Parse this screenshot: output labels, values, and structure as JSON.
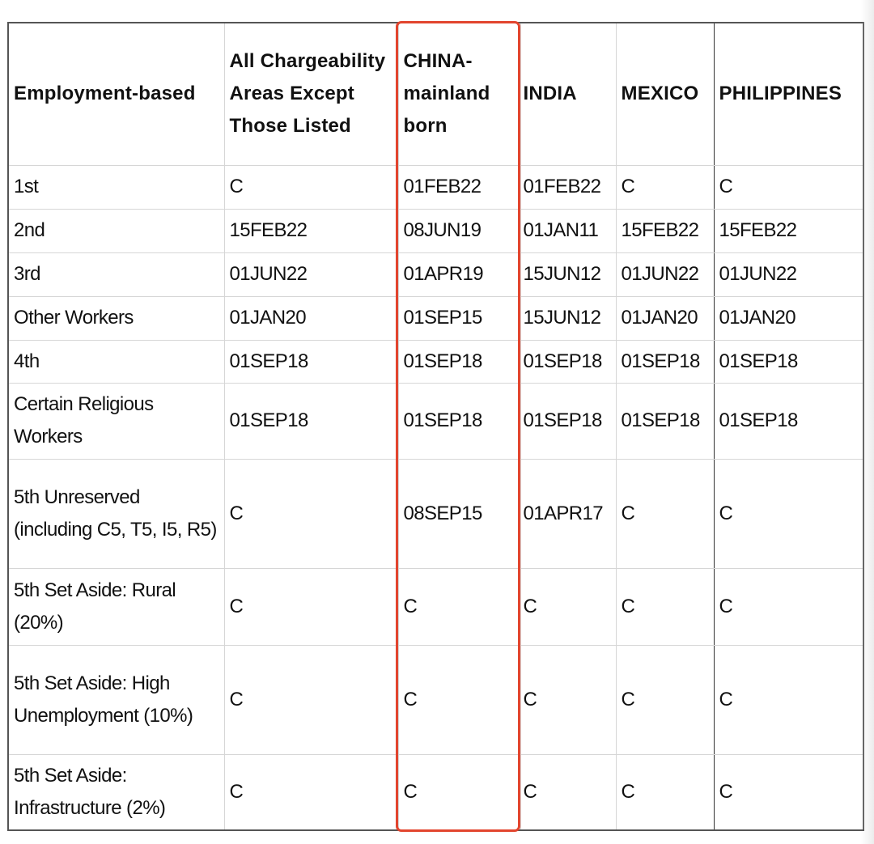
{
  "table": {
    "headers": [
      "Employment-based",
      "All Chargeability Areas Except Those Listed",
      "CHINA-mainland born",
      "INDIA",
      "MEXICO",
      "PHILIPPINES"
    ],
    "rows": [
      [
        "1st",
        "C",
        "01FEB22",
        "01FEB22",
        "C",
        "C"
      ],
      [
        "2nd",
        "15FEB22",
        "08JUN19",
        "01JAN11",
        "15FEB22",
        "15FEB22"
      ],
      [
        "3rd",
        "01JUN22",
        "01APR19",
        "15JUN12",
        "01JUN22",
        "01JUN22"
      ],
      [
        "Other Workers",
        "01JAN20",
        "01SEP15",
        "15JUN12",
        "01JAN20",
        "01JAN20"
      ],
      [
        "4th",
        "01SEP18",
        "01SEP18",
        "01SEP18",
        "01SEP18",
        "01SEP18"
      ],
      [
        "Certain Religious Workers",
        "01SEP18",
        "01SEP18",
        "01SEP18",
        "01SEP18",
        "01SEP18"
      ],
      [
        "5th Unreserved (including C5, T5, I5, R5)",
        "C",
        "08SEP15",
        "01APR17",
        "C",
        "C"
      ],
      [
        "5th Set Aside: Rural (20%)",
        "C",
        "C",
        "C",
        "C",
        "C"
      ],
      [
        "5th Set Aside: High Unemployment (10%)",
        "C",
        "C",
        "C",
        "C",
        "C"
      ],
      [
        "5th Set Aside: Infrastructure (2%)",
        "C",
        "C",
        "C",
        "C",
        "C"
      ]
    ],
    "highlight_column": "CHINA-mainland born",
    "highlight_color": "#e2452e"
  }
}
